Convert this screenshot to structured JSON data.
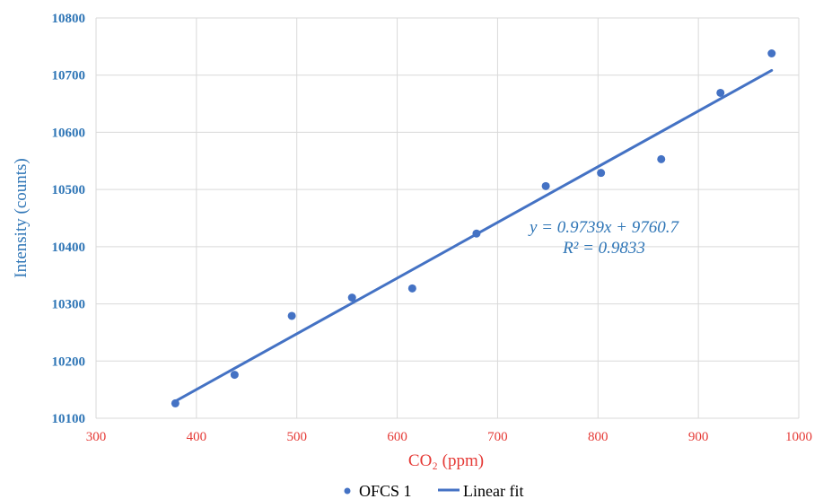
{
  "chart_data": {
    "type": "scatter",
    "xlabel": "CO₂ (ppm)",
    "ylabel": "Intensity (counts)",
    "xlim": [
      300,
      1000
    ],
    "ylim": [
      10100,
      10800
    ],
    "xticks": [
      "300",
      "400",
      "500",
      "600",
      "700",
      "800",
      "900",
      "1000"
    ],
    "yticks": [
      "10100",
      "10200",
      "10300",
      "10400",
      "10500",
      "10600",
      "10700",
      "10800"
    ],
    "grid": true,
    "legend_position": "bottom",
    "series": [
      {
        "name": "OFCS 1",
        "kind": "scatter",
        "color": "#4472C4",
        "x": [
          379,
          438,
          495,
          555,
          615,
          679,
          748,
          803,
          863,
          922,
          973
        ],
        "y": [
          10126,
          10176,
          10279,
          10311,
          10327,
          10423,
          10506,
          10529,
          10553,
          10669,
          10738
        ]
      },
      {
        "name": "Linear fit",
        "kind": "line",
        "color": "#4472C4",
        "x": [
          379,
          973
        ],
        "y": [
          10129.8,
          10708.3
        ]
      }
    ],
    "annotations": [
      "y = 0.9739x + 9760.7",
      "R² = 0.9833"
    ],
    "colors": {
      "x_axis_text": "#E53935",
      "y_axis_text": "#2E75B6",
      "annotation": "#2E75B6",
      "grid": "#D9D9D9"
    }
  }
}
